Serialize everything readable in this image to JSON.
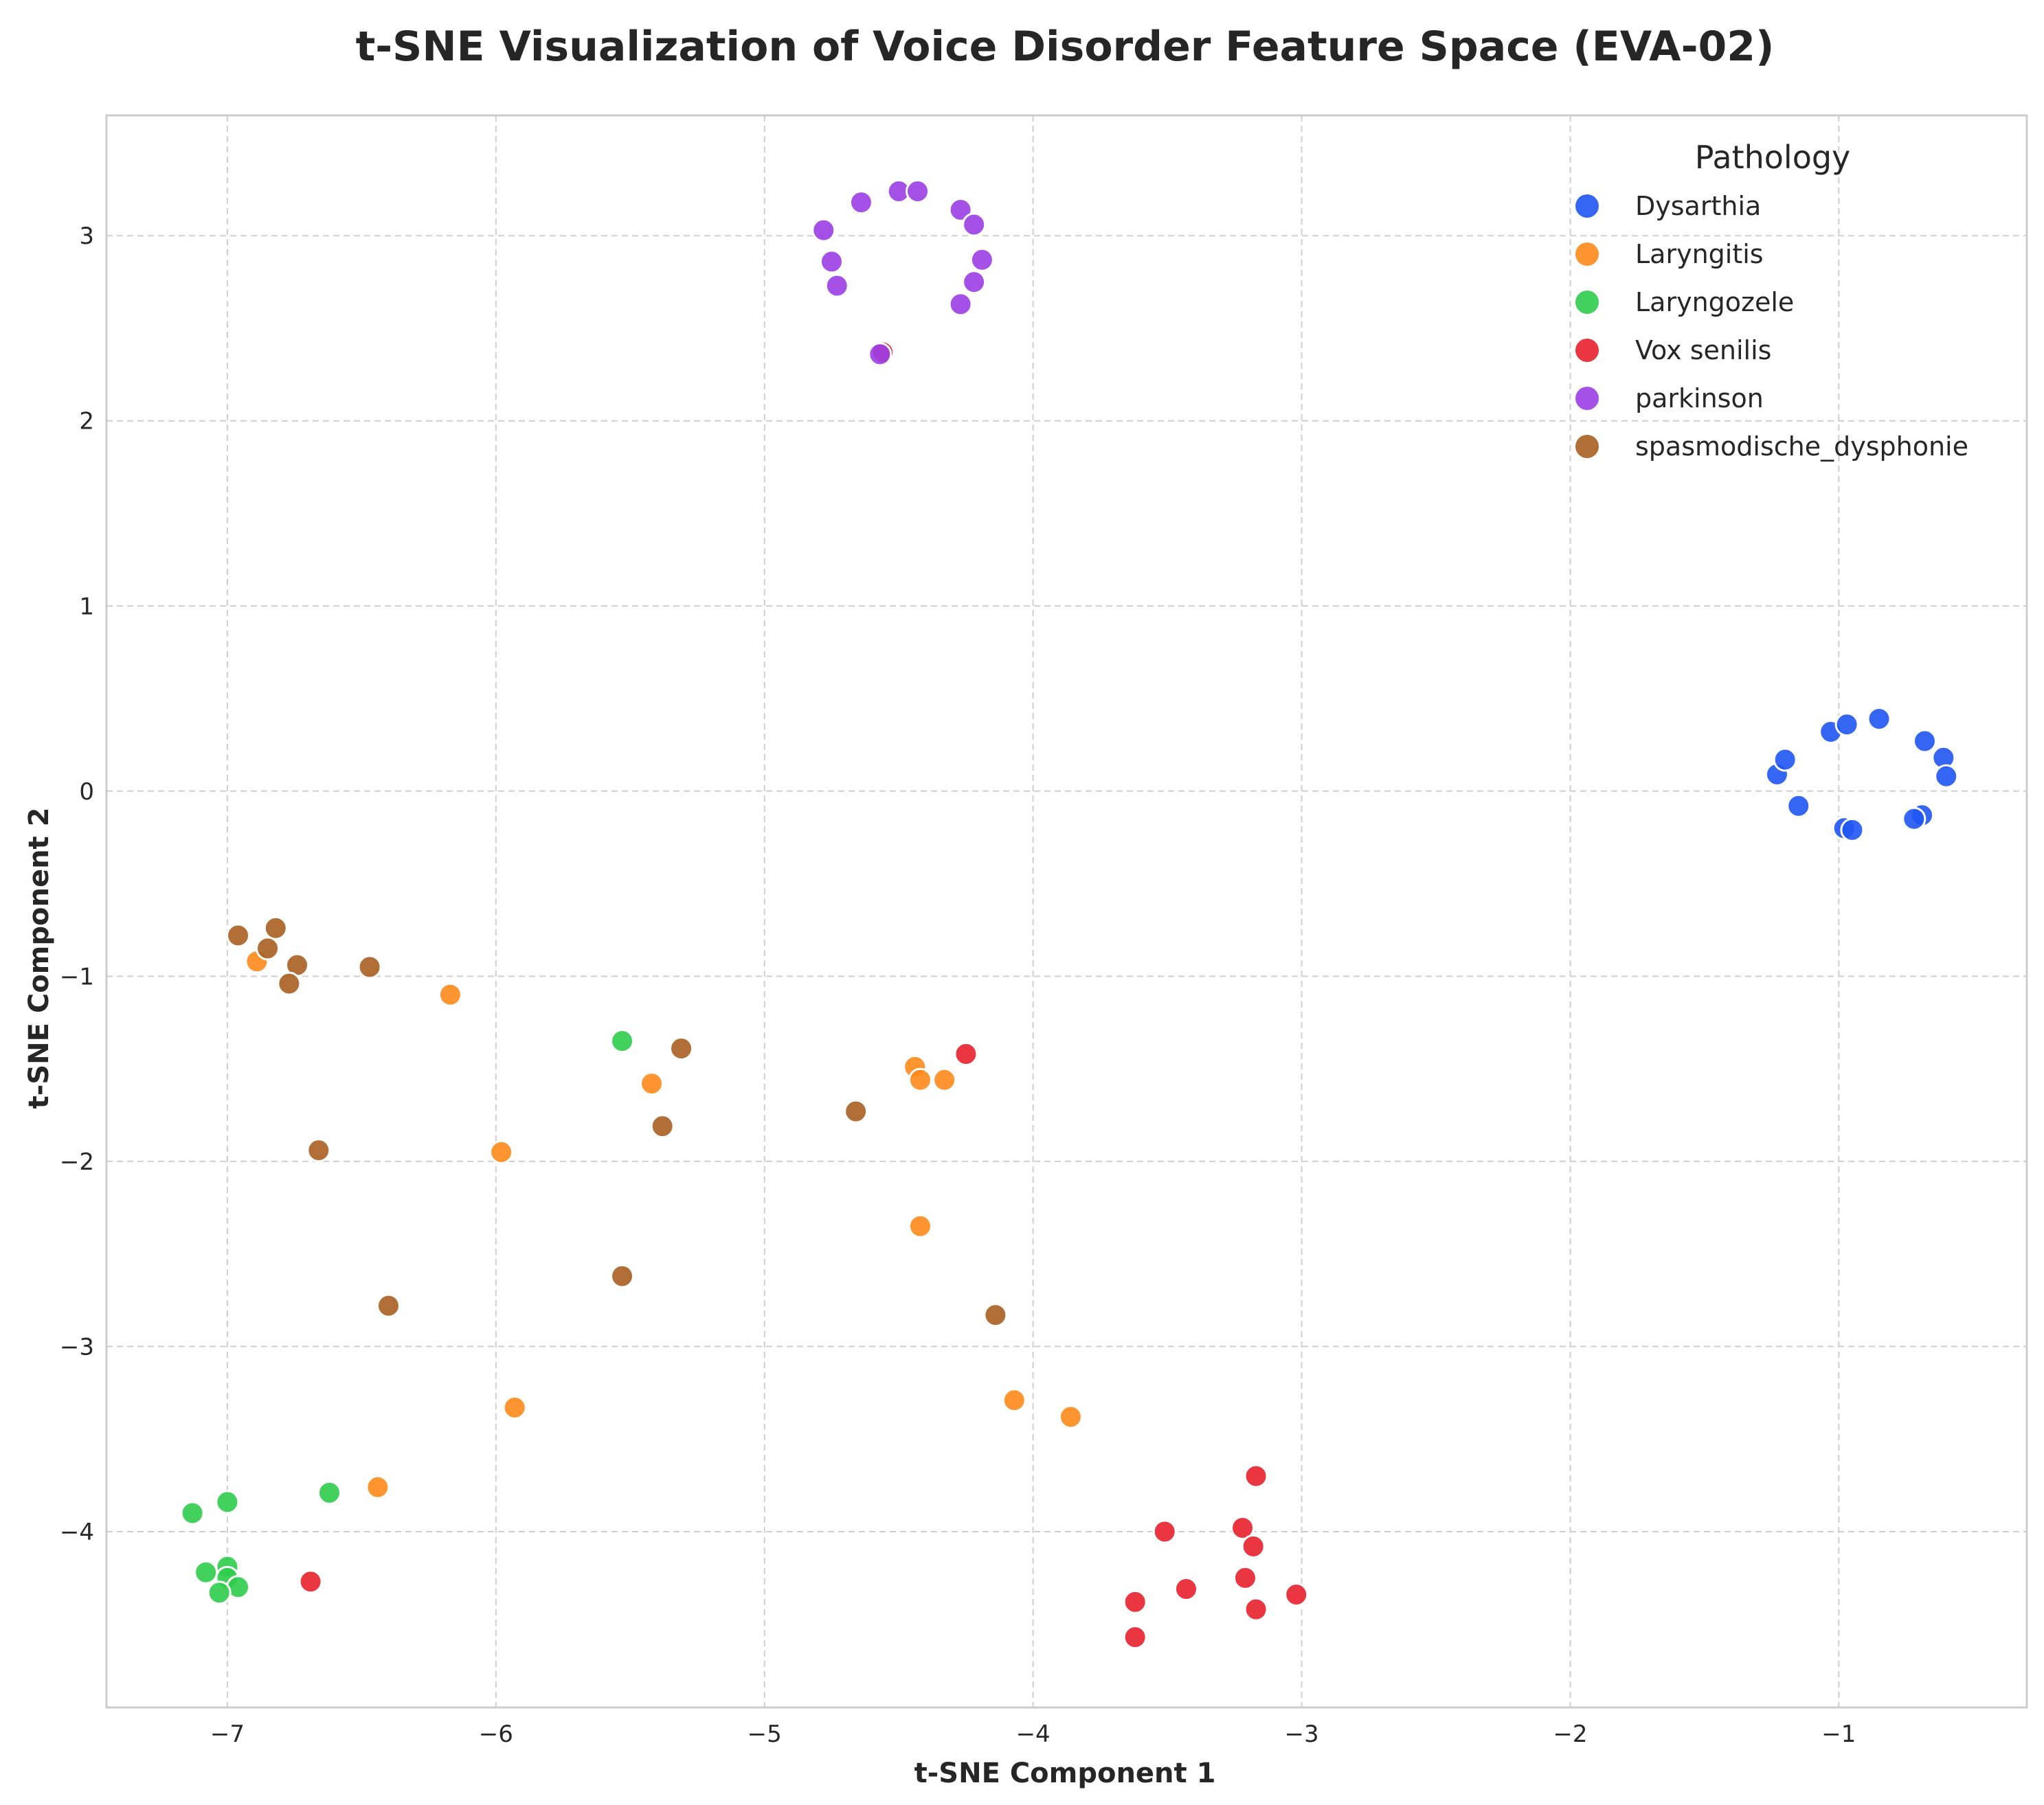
{
  "chart_data": {
    "type": "scatter",
    "title": "t-SNE Visualization of Voice Disorder Feature Space (EVA-02)",
    "xlabel": "t-SNE Component 1",
    "ylabel": "t-SNE Component 2",
    "xlim": [
      -7.45,
      -0.3
    ],
    "ylim": [
      -4.95,
      3.65
    ],
    "xticks": [
      -7,
      -6,
      -5,
      -4,
      -3,
      -2,
      -1
    ],
    "xtick_labels": [
      "−7",
      "−6",
      "−5",
      "−4",
      "−3",
      "−2",
      "−1"
    ],
    "yticks": [
      -4,
      -3,
      -2,
      -1,
      0,
      1,
      2,
      3
    ],
    "ytick_labels": [
      "−4",
      "−3",
      "−2",
      "−1",
      "0",
      "1",
      "2",
      "3"
    ],
    "grid": true,
    "legend": {
      "title": "Pathology",
      "placement": "top-right"
    },
    "series": [
      {
        "name": "Dysarthia",
        "color": "#1f55f2",
        "points": [
          [
            -1.23,
            0.09
          ],
          [
            -1.2,
            0.17
          ],
          [
            -1.15,
            -0.08
          ],
          [
            -1.03,
            0.32
          ],
          [
            -0.97,
            0.36
          ],
          [
            -0.85,
            0.39
          ],
          [
            -0.98,
            -0.2
          ],
          [
            -0.95,
            -0.21
          ],
          [
            -0.68,
            0.27
          ],
          [
            -0.61,
            0.18
          ],
          [
            -0.6,
            0.08
          ],
          [
            -0.69,
            -0.13
          ],
          [
            -0.72,
            -0.15
          ]
        ]
      },
      {
        "name": "Laryngitis",
        "color": "#ff8a1a",
        "points": [
          [
            -6.89,
            -0.92
          ],
          [
            -6.17,
            -1.1
          ],
          [
            -5.98,
            -1.95
          ],
          [
            -5.42,
            -1.58
          ],
          [
            -4.44,
            -1.49
          ],
          [
            -4.42,
            -1.56
          ],
          [
            -4.33,
            -1.56
          ],
          [
            -4.42,
            -2.35
          ],
          [
            -5.93,
            -3.33
          ],
          [
            -6.44,
            -3.76
          ],
          [
            -4.07,
            -3.29
          ],
          [
            -3.86,
            -3.38
          ]
        ]
      },
      {
        "name": "Laryngozele",
        "color": "#2ecc4a",
        "points": [
          [
            -5.53,
            -1.35
          ],
          [
            -6.62,
            -3.79
          ],
          [
            -7.0,
            -3.84
          ],
          [
            -7.13,
            -3.9
          ],
          [
            -7.08,
            -4.22
          ],
          [
            -7.0,
            -4.19
          ],
          [
            -7.0,
            -4.25
          ],
          [
            -6.96,
            -4.3
          ],
          [
            -7.03,
            -4.33
          ]
        ]
      },
      {
        "name": "Vox senilis",
        "color": "#e8202b",
        "points": [
          [
            -4.25,
            -1.42
          ],
          [
            -6.69,
            -4.27
          ],
          [
            -3.17,
            -3.7
          ],
          [
            -3.51,
            -4.0
          ],
          [
            -3.22,
            -3.98
          ],
          [
            -3.18,
            -4.08
          ],
          [
            -3.43,
            -4.31
          ],
          [
            -3.21,
            -4.25
          ],
          [
            -3.02,
            -4.34
          ],
          [
            -3.17,
            -4.42
          ],
          [
            -3.62,
            -4.38
          ],
          [
            -3.62,
            -4.57
          ],
          [
            -4.56,
            2.37
          ]
        ]
      },
      {
        "name": "parkinson",
        "color": "#9b3ee6",
        "points": [
          [
            -4.78,
            3.03
          ],
          [
            -4.64,
            3.18
          ],
          [
            -4.5,
            3.24
          ],
          [
            -4.43,
            3.24
          ],
          [
            -4.27,
            3.14
          ],
          [
            -4.22,
            3.06
          ],
          [
            -4.19,
            2.87
          ],
          [
            -4.22,
            2.75
          ],
          [
            -4.27,
            2.63
          ],
          [
            -4.75,
            2.86
          ],
          [
            -4.73,
            2.73
          ],
          [
            -4.57,
            2.36
          ]
        ]
      },
      {
        "name": "spasmodische_dysphonie",
        "color": "#a85e20",
        "points": [
          [
            -6.96,
            -0.78
          ],
          [
            -6.82,
            -0.74
          ],
          [
            -6.85,
            -0.85
          ],
          [
            -6.74,
            -0.94
          ],
          [
            -6.77,
            -1.04
          ],
          [
            -6.47,
            -0.95
          ],
          [
            -6.66,
            -1.94
          ],
          [
            -5.31,
            -1.39
          ],
          [
            -5.38,
            -1.81
          ],
          [
            -4.66,
            -1.73
          ],
          [
            -5.53,
            -2.62
          ],
          [
            -6.4,
            -2.78
          ],
          [
            -4.14,
            -2.83
          ]
        ]
      }
    ]
  }
}
